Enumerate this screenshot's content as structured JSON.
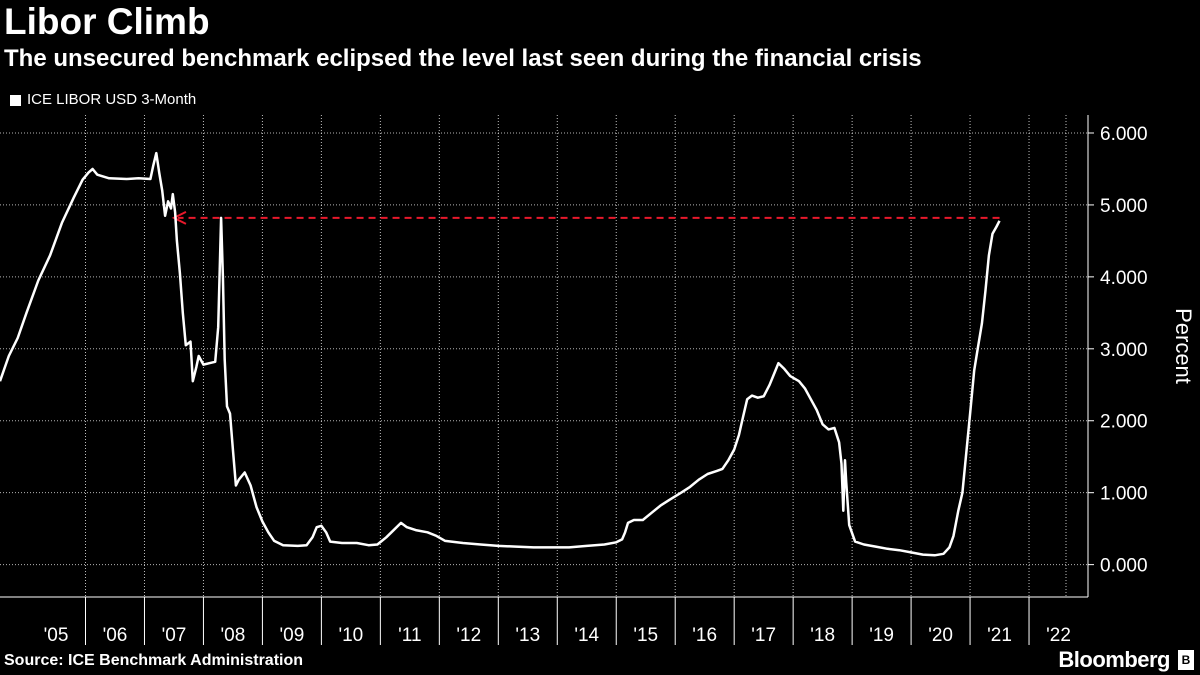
{
  "header": {
    "title": "Libor Climb",
    "subtitle": "The unsecured benchmark eclipsed the level last seen during the financial crisis"
  },
  "legend": {
    "label": "ICE LIBOR USD 3-Month"
  },
  "footer": {
    "source": "Source: ICE Benchmark Administration",
    "brand": "Bloomberg"
  },
  "colors": {
    "background": "#000000",
    "series": "#ffffff",
    "reference_line": "#e8192c",
    "grid": "#ffffff"
  },
  "chart_data": {
    "type": "line",
    "title": "Libor Climb",
    "subtitle": "The unsecured benchmark eclipsed the level last seen during the financial crisis",
    "ylabel": "Percent",
    "ylim": [
      -0.45,
      6.25
    ],
    "yticks": [
      0,
      1,
      2,
      3,
      4,
      5,
      6
    ],
    "ytick_labels": [
      "0.000",
      "1.000",
      "2.000",
      "3.000",
      "4.000",
      "5.000",
      "6.000"
    ],
    "xlim": [
      2004.55,
      2023.0
    ],
    "xtick_labels": [
      "'05",
      "'06",
      "'07",
      "'08",
      "'09",
      "'10",
      "'11",
      "'12",
      "'13",
      "'14",
      "'15",
      "'16",
      "'17",
      "'18",
      "'19",
      "'20",
      "'21",
      "'22"
    ],
    "grid": "vertical dotted",
    "legend_position": "top-left",
    "series": [
      {
        "name": "ICE LIBOR USD 3-Month",
        "points": [
          [
            2004.55,
            2.55
          ],
          [
            2004.7,
            2.9
          ],
          [
            2004.85,
            3.15
          ],
          [
            2005.0,
            3.5
          ],
          [
            2005.2,
            3.95
          ],
          [
            2005.4,
            4.3
          ],
          [
            2005.6,
            4.75
          ],
          [
            2005.8,
            5.1
          ],
          [
            2005.95,
            5.35
          ],
          [
            2006.05,
            5.45
          ],
          [
            2006.12,
            5.5
          ],
          [
            2006.2,
            5.42
          ],
          [
            2006.4,
            5.37
          ],
          [
            2006.7,
            5.36
          ],
          [
            2006.9,
            5.37
          ],
          [
            2007.1,
            5.36
          ],
          [
            2007.15,
            5.55
          ],
          [
            2007.2,
            5.72
          ],
          [
            2007.25,
            5.45
          ],
          [
            2007.3,
            5.2
          ],
          [
            2007.35,
            4.85
          ],
          [
            2007.4,
            5.05
          ],
          [
            2007.45,
            4.95
          ],
          [
            2007.48,
            5.15
          ],
          [
            2007.52,
            4.9
          ],
          [
            2007.55,
            4.5
          ],
          [
            2007.6,
            4.05
          ],
          [
            2007.65,
            3.5
          ],
          [
            2007.7,
            3.05
          ],
          [
            2007.78,
            3.1
          ],
          [
            2007.82,
            2.55
          ],
          [
            2007.88,
            2.75
          ],
          [
            2007.92,
            2.9
          ],
          [
            2008.0,
            2.78
          ],
          [
            2008.1,
            2.8
          ],
          [
            2008.2,
            2.82
          ],
          [
            2008.25,
            3.3
          ],
          [
            2008.3,
            4.82
          ],
          [
            2008.33,
            4.0
          ],
          [
            2008.36,
            2.85
          ],
          [
            2008.4,
            2.2
          ],
          [
            2008.45,
            2.1
          ],
          [
            2008.5,
            1.6
          ],
          [
            2008.55,
            1.1
          ],
          [
            2008.6,
            1.18
          ],
          [
            2008.7,
            1.28
          ],
          [
            2008.8,
            1.1
          ],
          [
            2008.9,
            0.8
          ],
          [
            2009.0,
            0.6
          ],
          [
            2009.1,
            0.45
          ],
          [
            2009.2,
            0.33
          ],
          [
            2009.35,
            0.27
          ],
          [
            2009.6,
            0.26
          ],
          [
            2009.75,
            0.27
          ],
          [
            2009.85,
            0.38
          ],
          [
            2009.92,
            0.52
          ],
          [
            2010.0,
            0.54
          ],
          [
            2010.08,
            0.45
          ],
          [
            2010.15,
            0.32
          ],
          [
            2010.35,
            0.3
          ],
          [
            2010.6,
            0.3
          ],
          [
            2010.8,
            0.27
          ],
          [
            2010.95,
            0.28
          ],
          [
            2011.1,
            0.38
          ],
          [
            2011.25,
            0.5
          ],
          [
            2011.35,
            0.58
          ],
          [
            2011.45,
            0.52
          ],
          [
            2011.6,
            0.48
          ],
          [
            2011.8,
            0.45
          ],
          [
            2011.95,
            0.4
          ],
          [
            2012.1,
            0.33
          ],
          [
            2012.4,
            0.3
          ],
          [
            2012.7,
            0.28
          ],
          [
            2013.0,
            0.26
          ],
          [
            2013.3,
            0.25
          ],
          [
            2013.6,
            0.24
          ],
          [
            2013.9,
            0.24
          ],
          [
            2014.2,
            0.24
          ],
          [
            2014.5,
            0.26
          ],
          [
            2014.8,
            0.28
          ],
          [
            2015.0,
            0.31
          ],
          [
            2015.1,
            0.35
          ],
          [
            2015.15,
            0.45
          ],
          [
            2015.2,
            0.58
          ],
          [
            2015.3,
            0.62
          ],
          [
            2015.45,
            0.62
          ],
          [
            2015.6,
            0.72
          ],
          [
            2015.75,
            0.82
          ],
          [
            2015.9,
            0.9
          ],
          [
            2016.0,
            0.95
          ],
          [
            2016.1,
            1.0
          ],
          [
            2016.25,
            1.08
          ],
          [
            2016.4,
            1.18
          ],
          [
            2016.55,
            1.26
          ],
          [
            2016.7,
            1.3
          ],
          [
            2016.8,
            1.33
          ],
          [
            2016.9,
            1.45
          ],
          [
            2017.0,
            1.6
          ],
          [
            2017.08,
            1.8
          ],
          [
            2017.15,
            2.05
          ],
          [
            2017.22,
            2.3
          ],
          [
            2017.3,
            2.35
          ],
          [
            2017.4,
            2.32
          ],
          [
            2017.5,
            2.34
          ],
          [
            2017.6,
            2.5
          ],
          [
            2017.7,
            2.7
          ],
          [
            2017.75,
            2.8
          ],
          [
            2017.85,
            2.72
          ],
          [
            2017.95,
            2.62
          ],
          [
            2018.1,
            2.55
          ],
          [
            2018.2,
            2.45
          ],
          [
            2018.3,
            2.3
          ],
          [
            2018.4,
            2.15
          ],
          [
            2018.5,
            1.95
          ],
          [
            2018.6,
            1.88
          ],
          [
            2018.7,
            1.9
          ],
          [
            2018.78,
            1.7
          ],
          [
            2018.82,
            1.4
          ],
          [
            2018.85,
            0.75
          ],
          [
            2018.88,
            1.45
          ],
          [
            2018.9,
            1.15
          ],
          [
            2018.95,
            0.55
          ],
          [
            2019.05,
            0.32
          ],
          [
            2019.2,
            0.28
          ],
          [
            2019.4,
            0.25
          ],
          [
            2019.6,
            0.22
          ],
          [
            2019.8,
            0.2
          ],
          [
            2020.0,
            0.17
          ],
          [
            2020.2,
            0.14
          ],
          [
            2020.4,
            0.13
          ],
          [
            2020.55,
            0.15
          ],
          [
            2020.65,
            0.24
          ],
          [
            2020.72,
            0.4
          ],
          [
            2020.8,
            0.75
          ],
          [
            2020.87,
            1.0
          ],
          [
            2020.93,
            1.5
          ],
          [
            2021.0,
            2.1
          ],
          [
            2021.07,
            2.7
          ],
          [
            2021.13,
            3.0
          ],
          [
            2021.2,
            3.35
          ],
          [
            2021.26,
            3.8
          ],
          [
            2021.32,
            4.3
          ],
          [
            2021.38,
            4.6
          ],
          [
            2021.45,
            4.7
          ],
          [
            2021.5,
            4.78
          ]
        ]
      }
    ],
    "annotations": [
      {
        "type": "dashed-arrow",
        "y": 4.82,
        "x_from": 2021.5,
        "x_to": 2007.5
      }
    ]
  }
}
